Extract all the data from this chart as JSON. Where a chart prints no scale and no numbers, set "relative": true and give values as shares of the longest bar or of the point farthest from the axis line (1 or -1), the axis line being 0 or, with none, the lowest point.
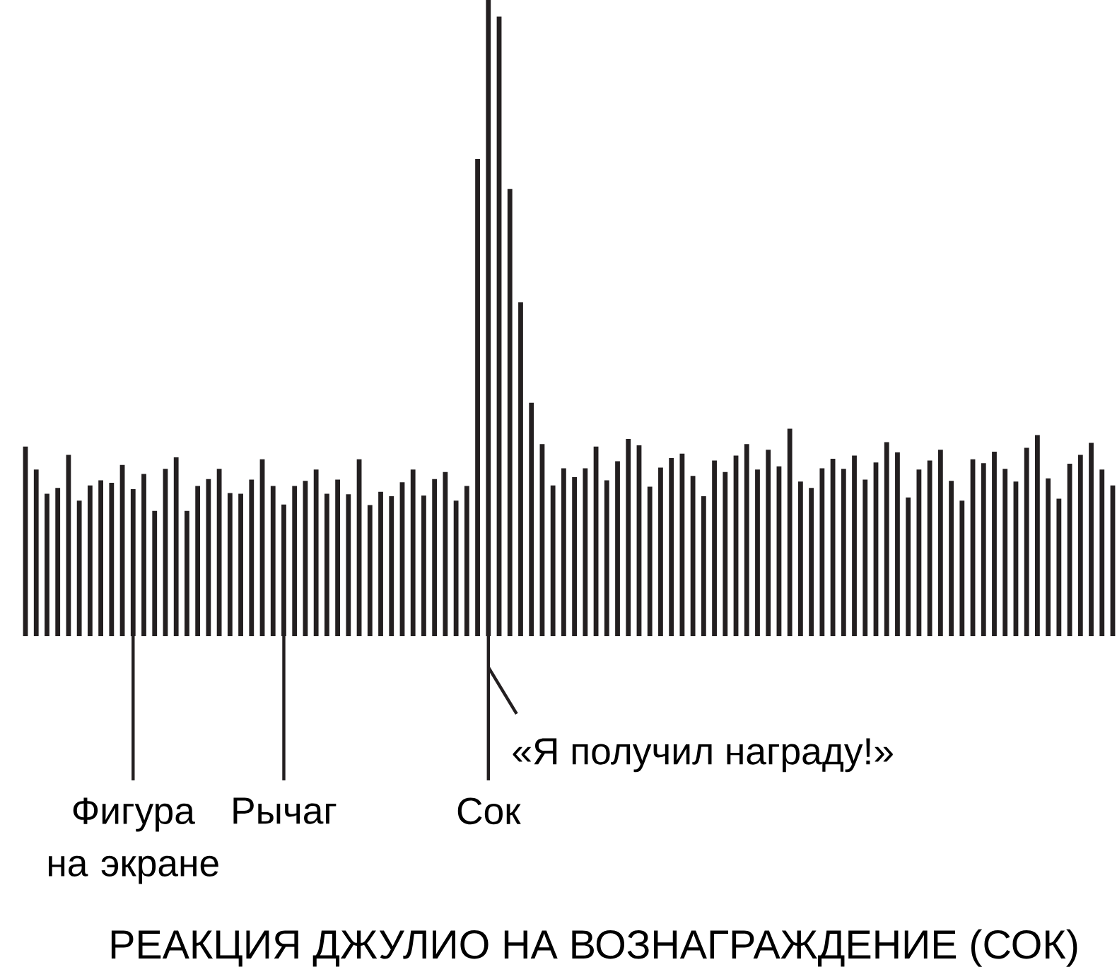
{
  "chart_data": {
    "type": "bar",
    "title": "РЕАКЦИЯ ДЖУЛИО НА ВОЗНАГРАЖДЕНИЕ (СОК)",
    "relative": true,
    "color": "#231f20",
    "categories": [
      null,
      null,
      null,
      null,
      null,
      null,
      null,
      null,
      null,
      null,
      "Фигура на экране",
      null,
      null,
      null,
      null,
      null,
      null,
      null,
      null,
      null,
      null,
      null,
      null,
      null,
      "Рычаг",
      null,
      null,
      null,
      null,
      null,
      null,
      null,
      null,
      null,
      null,
      null,
      null,
      null,
      null,
      null,
      null,
      null,
      null,
      "Сок",
      null,
      null,
      null,
      null,
      null,
      null,
      null,
      null,
      null,
      null,
      null,
      null,
      null,
      null,
      null,
      null,
      null,
      null,
      null,
      null,
      null,
      null,
      null,
      null,
      null,
      null,
      null,
      null,
      null,
      null,
      null,
      null,
      null,
      null,
      null,
      null,
      null,
      null,
      null,
      null,
      null,
      null,
      null,
      null,
      null,
      null,
      null,
      null,
      null,
      null,
      null,
      null,
      null,
      null,
      null,
      null,
      null,
      null
    ],
    "values": [
      0.298,
      0.262,
      0.224,
      0.233,
      0.285,
      0.213,
      0.237,
      0.245,
      0.241,
      0.269,
      0.231,
      0.255,
      0.197,
      0.263,
      0.281,
      0.197,
      0.236,
      0.247,
      0.263,
      0.225,
      0.224,
      0.246,
      0.278,
      0.236,
      0.207,
      0.236,
      0.244,
      0.262,
      0.224,
      0.246,
      0.223,
      0.278,
      0.206,
      0.227,
      0.22,
      0.242,
      0.262,
      0.221,
      0.247,
      0.258,
      0.213,
      0.236,
      0.75,
      1,
      0.974,
      0.703,
      0.525,
      0.367,
      0.302,
      0.237,
      0.264,
      0.25,
      0.264,
      0.298,
      0.245,
      0.275,
      0.31,
      0.3,
      0.235,
      0.265,
      0.28,
      0.287,
      0.252,
      0.22,
      0.276,
      0.258,
      0.284,
      0.302,
      0.262,
      0.293,
      0.267,
      0.326,
      0.243,
      0.233,
      0.264,
      0.279,
      0.263,
      0.284,
      0.246,
      0.273,
      0.305,
      0.289,
      0.218,
      0.262,
      0.276,
      0.293,
      0.244,
      0.213,
      0.278,
      0.272,
      0.29,
      0.263,
      0.243,
      0.296,
      0.316,
      0.248,
      0.216,
      0.271,
      0.285,
      0.304,
      0.262,
      0.237
    ],
    "annotations": [
      "«Я получил награду!»"
    ]
  }
}
